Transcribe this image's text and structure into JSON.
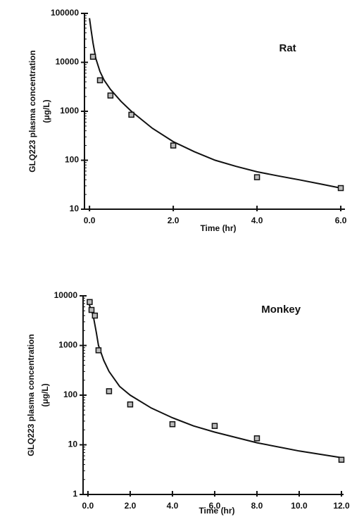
{
  "chart_data": [
    {
      "type": "scatter",
      "annotation": "Rat",
      "xlabel": "Time (hr)",
      "ylabel": [
        "GLQ223  plasma  concentration",
        "(μg/L)"
      ],
      "x": [
        0.083,
        0.25,
        0.5,
        1,
        2,
        4,
        6
      ],
      "values": [
        13000,
        4300,
        2100,
        850,
        200,
        45,
        27
      ],
      "fit": {
        "x": [
          0,
          0.04,
          0.083,
          0.15,
          0.25,
          0.35,
          0.5,
          0.75,
          1,
          1.5,
          2,
          2.5,
          3,
          3.5,
          4,
          4.5,
          5,
          5.5,
          6
        ],
        "values": [
          80000,
          45000,
          25000,
          12000,
          6500,
          4300,
          2800,
          1600,
          1000,
          450,
          240,
          150,
          100,
          75,
          58,
          48,
          40,
          33,
          27
        ]
      },
      "color": "#111",
      "xlim": [
        -0.12,
        6.1
      ],
      "xticks": [
        {
          "value": 0,
          "label": "0.0"
        },
        {
          "value": 2,
          "label": "2.0"
        },
        {
          "value": 4,
          "label": "4.0"
        },
        {
          "value": 6,
          "label": "6.0"
        }
      ],
      "ylim": [
        10,
        100000
      ],
      "yticks": [
        10,
        100,
        1000,
        10000,
        100000
      ],
      "yscale": "log"
    },
    {
      "type": "scatter",
      "annotation": "Monkey",
      "xlabel": "Time (hr)",
      "ylabel": [
        "GLQ223  plasma  concentration",
        "(μg/L)"
      ],
      "x": [
        0.083,
        0.17,
        0.33,
        0.5,
        1,
        2,
        4,
        6,
        8,
        12
      ],
      "values": [
        7500,
        5200,
        4000,
        800,
        120,
        65,
        26,
        24,
        13.5,
        5
      ],
      "fit": {
        "x": [
          0,
          0.1,
          0.25,
          0.4,
          0.5,
          0.75,
          1,
          1.5,
          2,
          3,
          4,
          5,
          6,
          8,
          10,
          12
        ],
        "values": [
          8000,
          6000,
          4000,
          1800,
          1000,
          500,
          300,
          150,
          100,
          55,
          35,
          24,
          18,
          11,
          7.5,
          5.5
        ]
      },
      "color": "#111",
      "xlim": [
        -0.23,
        12.1
      ],
      "xticks": [
        {
          "value": 0,
          "label": "0.0"
        },
        {
          "value": 2,
          "label": "2.0"
        },
        {
          "value": 4,
          "label": "4.0"
        },
        {
          "value": 6,
          "label": "6.0"
        },
        {
          "value": 8,
          "label": "8.0"
        },
        {
          "value": 10,
          "label": "10.0"
        },
        {
          "value": 12,
          "label": "12.0"
        }
      ],
      "ylim": [
        1,
        10000
      ],
      "yticks": [
        1,
        10,
        100,
        1000,
        10000
      ],
      "yscale": "log"
    }
  ]
}
